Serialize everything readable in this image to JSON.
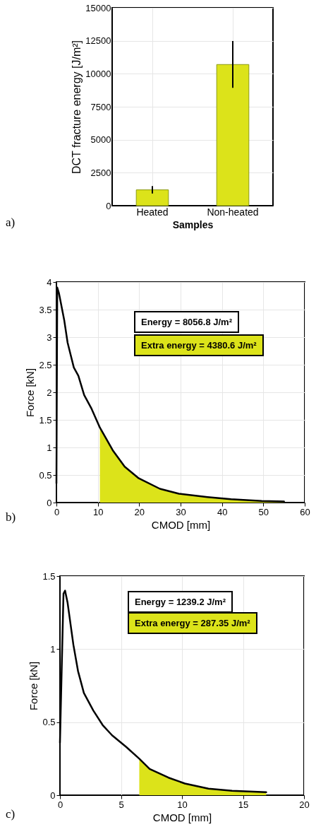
{
  "chart_data": [
    {
      "type": "bar",
      "xlabel": "Samples",
      "ylabel": "DCT fracture energy [J/m²]",
      "categories": [
        "Heated",
        "Non-heated"
      ],
      "values": [
        1200,
        10700
      ],
      "errors": [
        [
          930,
          1480
        ],
        [
          8930,
          12480
        ]
      ],
      "color": "#dce31a",
      "ylim": [
        0,
        15000
      ],
      "yticks": [
        0,
        2500,
        5000,
        7500,
        10000,
        12500,
        15000
      ],
      "grid": true,
      "annotations": [
        "a)"
      ]
    },
    {
      "type": "line",
      "xlabel": "CMOD [mm]",
      "ylabel": "Force [kN]",
      "xlim": [
        0,
        60
      ],
      "xticks": [
        0,
        10,
        20,
        30,
        40,
        50,
        60
      ],
      "ylim": [
        0,
        4
      ],
      "yticks": [
        0,
        0.5,
        1,
        1.5,
        2,
        2.5,
        3,
        3.5,
        4
      ],
      "grid": true,
      "series": [
        {
          "type": "area",
          "color": "#dce31a",
          "x": [
            10.5,
            13.6,
            16.5,
            19.9,
            25,
            29.6,
            36.5,
            42.2,
            49.6,
            55
          ],
          "values": [
            1.36,
            0.95,
            0.65,
            0.44,
            0.25,
            0.16,
            0.1,
            0.06,
            0.03,
            0.02
          ]
        },
        {
          "type": "line",
          "color": "#000000",
          "x": [
            0,
            0.2,
            0.6,
            1.9,
            2.7,
            4.2,
            5.3,
            6.7,
            8.5,
            10.5,
            13.6,
            16.5,
            19.9,
            25,
            29.6,
            36.5,
            42.2,
            49.6,
            55
          ],
          "values": [
            0.35,
            3.9,
            3.8,
            3.3,
            2.9,
            2.45,
            2.3,
            1.95,
            1.7,
            1.36,
            0.95,
            0.65,
            0.44,
            0.25,
            0.16,
            0.1,
            0.06,
            0.03,
            0.02
          ]
        }
      ],
      "annotations": [
        "Energy = 8056.8 J/m²",
        "Extra energy = 4380.6 J/m²",
        "b)"
      ]
    },
    {
      "type": "line",
      "xlabel": "CMOD [mm]",
      "ylabel": "Force [kN]",
      "xlim": [
        0,
        20
      ],
      "xticks": [
        0,
        5,
        10,
        15,
        20
      ],
      "ylim": [
        0,
        1.5
      ],
      "yticks": [
        0,
        0.5,
        1,
        1.5
      ],
      "grid": true,
      "series": [
        {
          "type": "area",
          "color": "#dce31a",
          "x": [
            6.5,
            7.35,
            8.9,
            10.24,
            12.17,
            14.1,
            16.9
          ],
          "values": [
            0.25,
            0.18,
            0.12,
            0.08,
            0.045,
            0.03,
            0.02
          ]
        },
        {
          "type": "line",
          "color": "#000000",
          "x": [
            0,
            0.29,
            0.42,
            0.62,
            1.1,
            1.48,
            1.96,
            2.73,
            3.5,
            4.27,
            4.85,
            5.43,
            6.5,
            7.35,
            8.9,
            10.24,
            12.17,
            14.1,
            16.9
          ],
          "values": [
            0.36,
            1.38,
            1.4,
            1.32,
            1.03,
            0.85,
            0.7,
            0.58,
            0.48,
            0.41,
            0.37,
            0.33,
            0.25,
            0.18,
            0.12,
            0.08,
            0.045,
            0.03,
            0.02
          ]
        }
      ],
      "annotations": [
        "Energy = 1239.2 J/m²",
        "Extra energy = 287.35 J/m²",
        "c)"
      ]
    }
  ]
}
